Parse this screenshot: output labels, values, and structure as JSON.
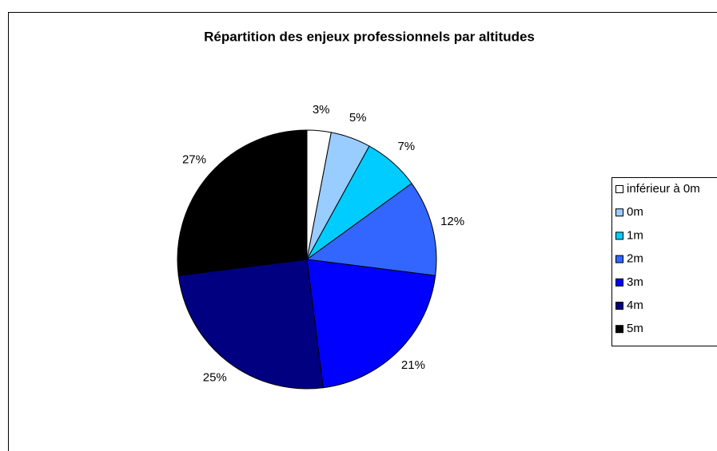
{
  "chart_data": {
    "type": "pie",
    "title": "Répartition des enjeux professionnels par altitudes",
    "categories": [
      "inférieur à 0m",
      "0m",
      "1m",
      "2m",
      "3m",
      "4m",
      "5m"
    ],
    "values": [
      3,
      5,
      7,
      12,
      21,
      25,
      27
    ],
    "value_labels": [
      "3%",
      "5%",
      "7%",
      "12%",
      "21%",
      "25%",
      "27%"
    ],
    "colors": [
      "#ffffff",
      "#99ccff",
      "#00ccff",
      "#3366ff",
      "#0000ff",
      "#000080",
      "#000000"
    ],
    "legend": "right"
  }
}
